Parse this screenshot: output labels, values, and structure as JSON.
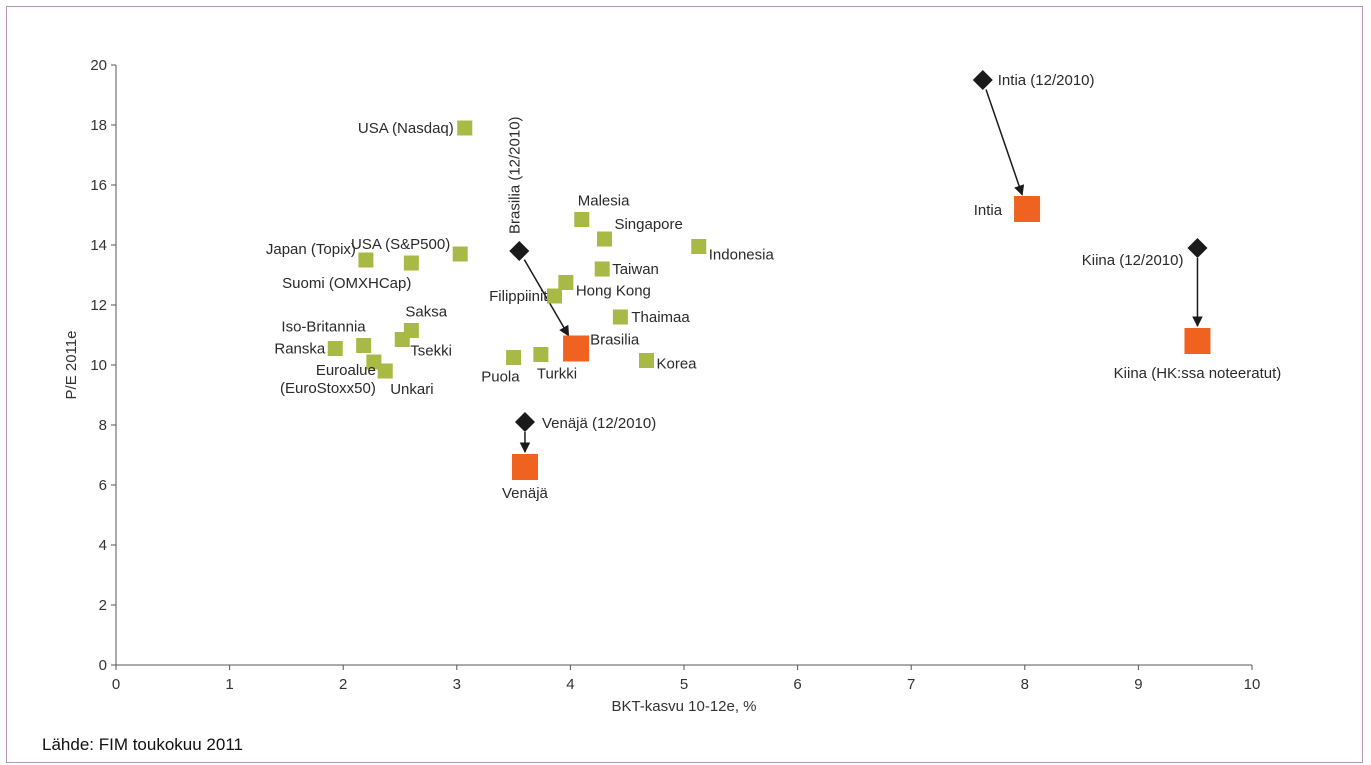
{
  "source_note": "Lähde: FIM toukokuu 2011",
  "colors": {
    "green_marker": "#a9b945",
    "orange_marker": "#f0621f",
    "diamond_marker": "#1a1a1a",
    "frame_border": "#b694b8"
  },
  "chart_data": {
    "type": "scatter",
    "title": "",
    "xlabel": "BKT-kasvu 10-12e, %",
    "ylabel": "P/E 2011e",
    "xlim": [
      0,
      10
    ],
    "ylim": [
      0,
      20
    ],
    "x_ticks": [
      0,
      1,
      2,
      3,
      4,
      5,
      6,
      7,
      8,
      9,
      10
    ],
    "y_ticks": [
      0,
      2,
      4,
      6,
      8,
      10,
      12,
      14,
      16,
      18,
      20
    ],
    "grid": false,
    "legend": "none",
    "series": [
      {
        "marker": "green-square",
        "points": [
          {
            "label": "USA (Nasdaq)",
            "x": 3.07,
            "y": 17.9
          },
          {
            "label": "USA (S&P500)",
            "x": 3.03,
            "y": 13.7
          },
          {
            "label": "Japan (Topix)",
            "x": 2.2,
            "y": 13.5
          },
          {
            "label": "Suomi (OMXHCap)",
            "x": 2.6,
            "y": 13.4
          },
          {
            "label": "Saksa",
            "x": 2.6,
            "y": 11.15
          },
          {
            "label": "Iso-Britannia",
            "x": 2.18,
            "y": 10.65
          },
          {
            "label": "Ranska",
            "x": 1.93,
            "y": 10.55
          },
          {
            "label": "Tsekki",
            "x": 2.52,
            "y": 10.85
          },
          {
            "label": "Euroalue (EuroStoxx50)",
            "x": 2.27,
            "y": 10.1
          },
          {
            "label": "Unkari",
            "x": 2.37,
            "y": 9.8
          },
          {
            "label": "Malesia",
            "x": 4.1,
            "y": 14.85
          },
          {
            "label": "Singapore",
            "x": 4.3,
            "y": 14.2
          },
          {
            "label": "Indonesia",
            "x": 5.13,
            "y": 13.95
          },
          {
            "label": "Taiwan",
            "x": 4.28,
            "y": 13.2
          },
          {
            "label": "Hong Kong",
            "x": 3.96,
            "y": 12.75
          },
          {
            "label": "Filippiinit",
            "x": 3.86,
            "y": 12.3
          },
          {
            "label": "Thaimaa",
            "x": 4.44,
            "y": 11.6
          },
          {
            "label": "Korea",
            "x": 4.67,
            "y": 10.15
          },
          {
            "label": "Puola",
            "x": 3.5,
            "y": 10.25
          },
          {
            "label": "Turkki",
            "x": 3.74,
            "y": 10.35
          }
        ]
      },
      {
        "marker": "orange-square",
        "points": [
          {
            "label": "Intia",
            "x": 8.02,
            "y": 15.2
          },
          {
            "label": "Kiina (HK:ssa noteeratut)",
            "x": 9.52,
            "y": 10.8
          },
          {
            "label": "Brasilia",
            "x": 4.05,
            "y": 10.55
          },
          {
            "label": "Venäjä",
            "x": 3.6,
            "y": 6.6
          }
        ]
      },
      {
        "marker": "black-diamond",
        "points": [
          {
            "label": "Intia (12/2010)",
            "x": 7.63,
            "y": 19.5
          },
          {
            "label": "Kiina (12/2010)",
            "x": 9.52,
            "y": 13.9
          },
          {
            "label": "Brasilia (12/2010)",
            "x": 3.55,
            "y": 13.8
          },
          {
            "label": "Venäjä (12/2010)",
            "x": 3.6,
            "y": 8.1
          }
        ]
      }
    ],
    "arrows": [
      {
        "from": "Intia (12/2010)",
        "to": "Intia"
      },
      {
        "from": "Kiina (12/2010)",
        "to": "Kiina (HK:ssa noteeratut)"
      },
      {
        "from": "Brasilia (12/2010)",
        "to": "Brasilia"
      },
      {
        "from": "Venäjä (12/2010)",
        "to": "Venäjä"
      }
    ]
  }
}
